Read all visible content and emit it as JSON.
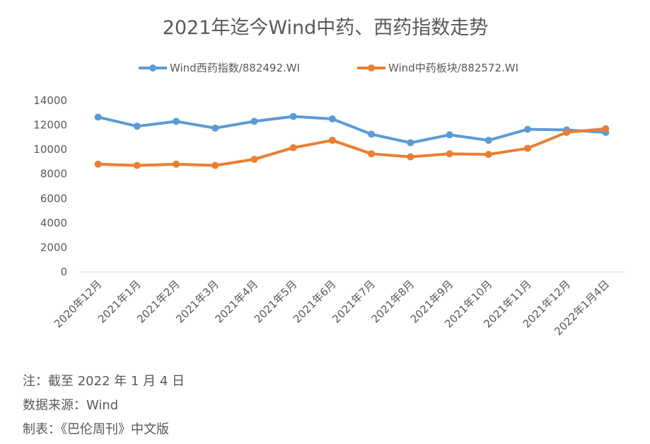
{
  "chart_data": {
    "type": "line",
    "title": "2021年迄今Wind中药、西药指数走势",
    "xlabel": "",
    "ylabel": "",
    "categories": [
      "2020年12月",
      "2021年1月",
      "2021年2月",
      "2021年3月",
      "2021年4月",
      "2021年5月",
      "2021年6月",
      "2021年7月",
      "2021年8月",
      "2021年9月",
      "2021年10月",
      "2021年11月",
      "2021年12月",
      "2022年1月4日"
    ],
    "series": [
      {
        "name": "Wind西药指数/882492.WI",
        "color": "#5B9BD5",
        "values": [
          12650,
          11900,
          12300,
          11750,
          12300,
          12700,
          12500,
          11250,
          10550,
          11200,
          10750,
          11650,
          11600,
          11400
        ]
      },
      {
        "name": "Wind中药板块/882572.WI",
        "color": "#ED7D31",
        "values": [
          8800,
          8700,
          8800,
          8700,
          9200,
          10150,
          10750,
          9650,
          9400,
          9650,
          9600,
          10100,
          11400,
          11700
        ]
      }
    ],
    "ylim": [
      0,
      14000
    ],
    "yticks": [
      0,
      2000,
      4000,
      6000,
      8000,
      10000,
      12000,
      14000
    ],
    "grid": false,
    "legend_position": "top"
  },
  "notes": {
    "line1": "注：截至 2022 年 1 月 4 日",
    "line2": "数据来源：Wind",
    "line3": "制表：《巴伦周刊》中文版"
  }
}
